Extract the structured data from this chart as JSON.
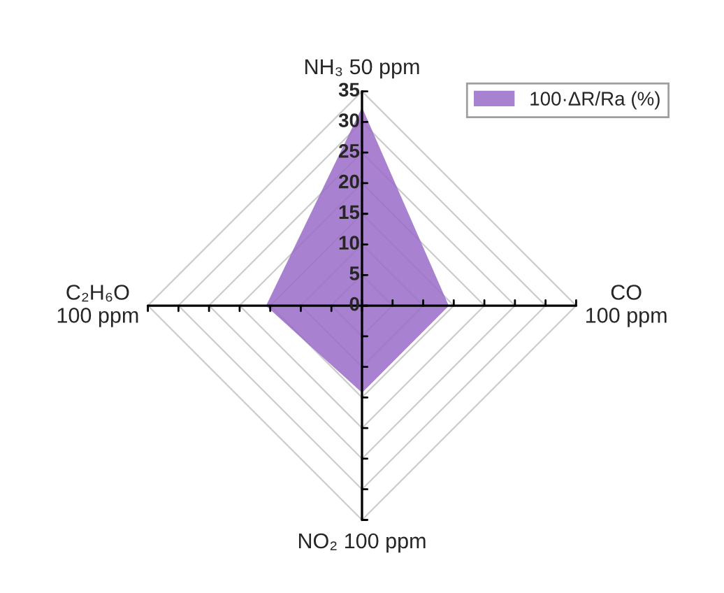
{
  "chart_data": {
    "type": "radar",
    "categories": [
      "NH₃ 50 ppm",
      "CO\n100 ppm",
      "NO₂ 100 ppm",
      "C₂H₆O\n100 ppm"
    ],
    "series": [
      {
        "name": "100·ΔR/Ra (%)",
        "color": "#9a6cc8",
        "values": [
          32,
          14,
          14,
          15.5
        ]
      }
    ],
    "ylim": [
      0,
      35
    ],
    "yticks": [
      0,
      5,
      10,
      15,
      20,
      25,
      30,
      35
    ],
    "grid": true,
    "legend": "top right"
  }
}
